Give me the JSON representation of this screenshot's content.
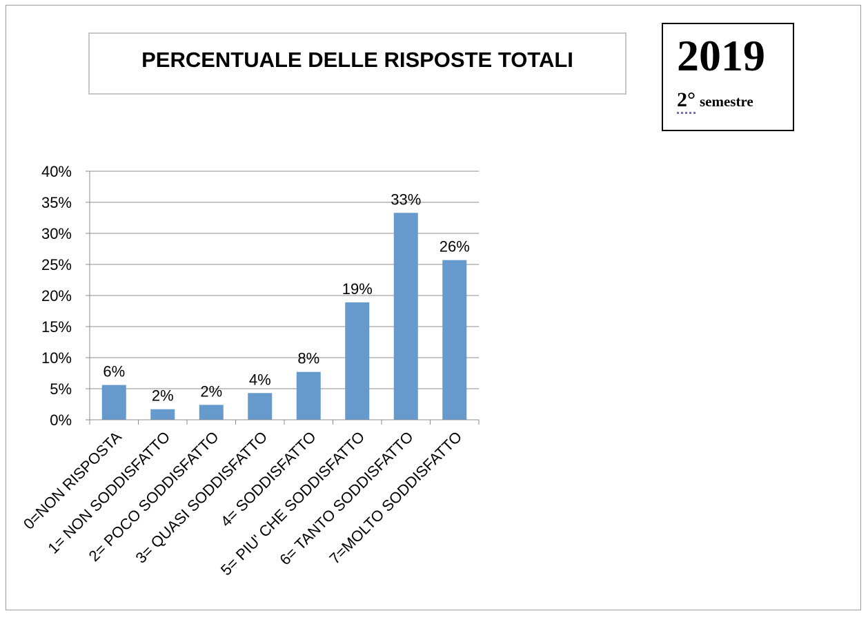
{
  "header": {
    "title": "PERCENTUALE DELLE RISPOSTE TOTALI",
    "year": "2019",
    "semester_number": "2°",
    "semester_word": "semestre"
  },
  "chart_data": {
    "type": "bar",
    "title": "PERCENTUALE DELLE RISPOSTE TOTALI",
    "categories": [
      "0=NON RISPOSTA",
      "1= NON SODDISFATTO",
      "2= POCO SODDISFATTO",
      "3= QUASI SODDISFATTO",
      "4= SODDISFATTO",
      "5= PIU' CHE SODDISFATTO",
      "6= TANTO SODDISFATTO",
      "7=MOLTO SODDISFATTO"
    ],
    "values": [
      5.6,
      1.7,
      2.4,
      4.3,
      7.7,
      18.9,
      33.3,
      25.7
    ],
    "data_labels": [
      "6%",
      "2%",
      "2%",
      "4%",
      "8%",
      "19%",
      "33%",
      "26%"
    ],
    "ylim": [
      0,
      40
    ],
    "y_ticks": [
      0,
      5,
      10,
      15,
      20,
      25,
      30,
      35,
      40
    ],
    "y_tick_labels": [
      "0%",
      "5%",
      "10%",
      "15%",
      "20%",
      "25%",
      "30%",
      "35%",
      "40%"
    ],
    "xlabel": "",
    "ylabel": "",
    "grid": true,
    "bar_color": "#6699cc"
  }
}
